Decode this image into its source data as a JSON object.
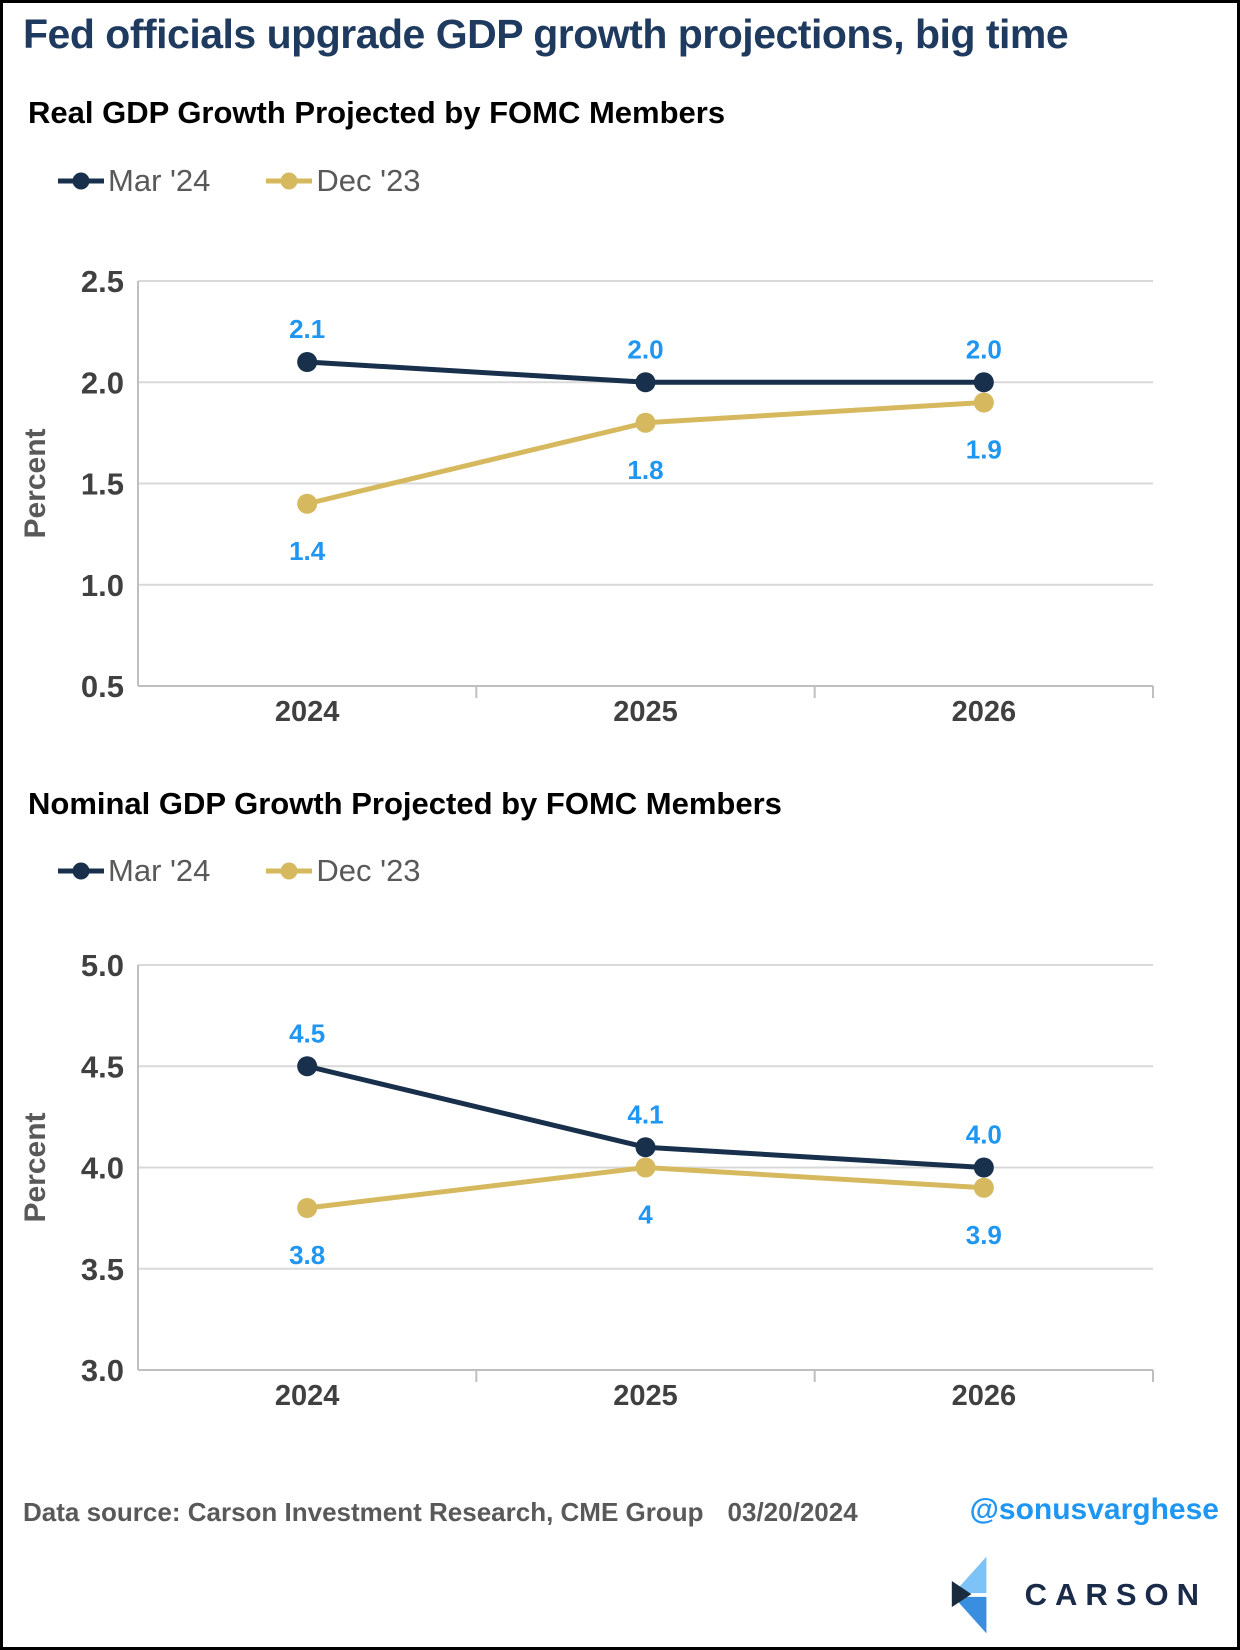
{
  "page": {
    "title": "Fed officials upgrade GDP growth projections, big time"
  },
  "colors": {
    "title_navy": "#1F3A5F",
    "heading_black": "#000000",
    "legend_text": "#595959",
    "axis_tick_text": "#404040",
    "axis_title_text": "#595959",
    "gridline": "#D9D9D9",
    "axis_line": "#BFBFBF",
    "data_label_blue": "#1E96F2",
    "series_navy": "#18304C",
    "series_gold": "#D6B95F",
    "handle_blue": "#1E96F2",
    "logo_navy": "#1A2B49",
    "logo_light_blue": "#7EC3F7",
    "logo_mid_blue": "#3A8EDF",
    "logo_dark_wedge": "#1B2B3E"
  },
  "chart_data": [
    {
      "type": "line",
      "title": "Real GDP Growth Projected by FOMC Members",
      "xlabel": "",
      "ylabel": "Percent",
      "categories": [
        "2024",
        "2025",
        "2026"
      ],
      "ylim": [
        0.5,
        2.5
      ],
      "yticks": [
        "0.5",
        "1.0",
        "1.5",
        "2.0",
        "2.5"
      ],
      "grid": true,
      "legend_position": "top-left",
      "series": [
        {
          "name": "Mar '24",
          "color": "#18304C",
          "values": [
            2.1,
            2.0,
            2.0
          ],
          "labels": [
            "2.1",
            "2.0",
            "2.0"
          ],
          "label_side": "above"
        },
        {
          "name": "Dec '23",
          "color": "#D6B95F",
          "values": [
            1.4,
            1.8,
            1.9
          ],
          "labels": [
            "1.4",
            "1.8",
            "1.9"
          ],
          "label_side": "below"
        }
      ]
    },
    {
      "type": "line",
      "title": "Nominal GDP Growth Projected by FOMC Members",
      "xlabel": "",
      "ylabel": "Percent",
      "categories": [
        "2024",
        "2025",
        "2026"
      ],
      "ylim": [
        3.0,
        5.0
      ],
      "yticks": [
        "3.0",
        "3.5",
        "4.0",
        "4.5",
        "5.0"
      ],
      "grid": true,
      "legend_position": "top-left",
      "series": [
        {
          "name": "Mar '24",
          "color": "#18304C",
          "values": [
            4.5,
            4.1,
            4.0
          ],
          "labels": [
            "4.5",
            "4.1",
            "4.0"
          ],
          "label_side": "above"
        },
        {
          "name": "Dec '23",
          "color": "#D6B95F",
          "values": [
            3.8,
            4.0,
            3.9
          ],
          "labels": [
            "3.8",
            "4",
            "3.9"
          ],
          "label_side": "below"
        }
      ]
    }
  ],
  "footer": {
    "source_text": "Data source: Carson Investment Research, CME Group",
    "date": "03/20/2024",
    "handle": "@sonusvarghese",
    "logo_text": "CARSON"
  }
}
